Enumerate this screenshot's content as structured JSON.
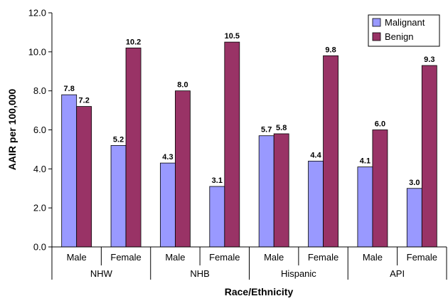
{
  "chart_data": {
    "type": "bar",
    "xlabel": "Race/Ethnicity",
    "ylabel": "AAIR per 100,000",
    "ylim": [
      0,
      12
    ],
    "yticks": [
      "0.0",
      "2.0",
      "4.0",
      "6.0",
      "8.0",
      "10.0",
      "12.0"
    ],
    "groups": [
      "NHW",
      "NHB",
      "Hispanic",
      "API"
    ],
    "categories": [
      "Male",
      "Female",
      "Male",
      "Female",
      "Male",
      "Female",
      "Male",
      "Female"
    ],
    "series": [
      {
        "name": "Malignant",
        "color": "#9999ff",
        "values": [
          7.8,
          5.2,
          4.3,
          3.1,
          5.7,
          4.4,
          4.1,
          3.0
        ],
        "labels": [
          "7.8",
          "5.2",
          "4.3",
          "3.1",
          "5.7",
          "4.4",
          "4.1",
          "3.0"
        ]
      },
      {
        "name": "Benign",
        "color": "#993366",
        "values": [
          7.2,
          10.2,
          8.0,
          10.5,
          5.8,
          9.8,
          6.0,
          9.3
        ],
        "labels": [
          "7.2",
          "10.2",
          "8.0",
          "10.5",
          "5.8",
          "9.8",
          "6.0",
          "9.3"
        ]
      }
    ],
    "legend_position": "top-right",
    "grid": false
  }
}
